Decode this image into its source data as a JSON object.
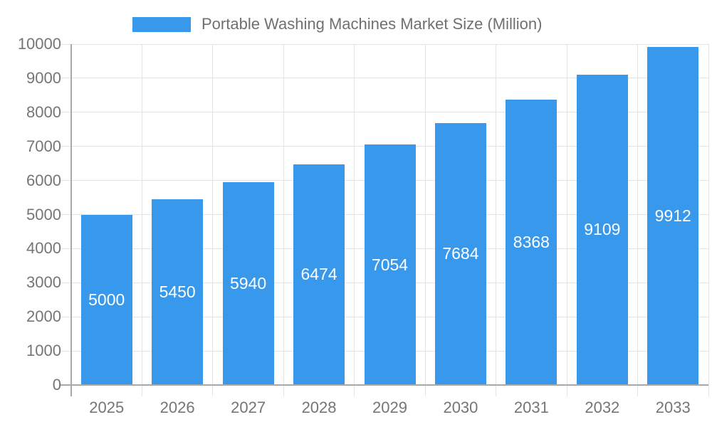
{
  "chart_data": {
    "type": "bar",
    "title": "Portable Washing Machines Market Size (Million)",
    "legend": {
      "label": "Portable Washing Machines Market Size (Million)",
      "position": "top"
    },
    "categories": [
      "2025",
      "2026",
      "2027",
      "2028",
      "2029",
      "2030",
      "2031",
      "2032",
      "2033"
    ],
    "values": [
      5000,
      5450,
      5940,
      6474,
      7054,
      7684,
      8368,
      9109,
      9912
    ],
    "xlabel": "",
    "ylabel": "",
    "ylim": [
      0,
      10000
    ],
    "yticks": [
      0,
      1000,
      2000,
      3000,
      4000,
      5000,
      6000,
      7000,
      8000,
      9000,
      10000
    ],
    "grid": true,
    "colors": {
      "bar": "#3898ec",
      "grid": "#e3e3e3",
      "axis": "#a8a8a8",
      "tick_text": "#757575",
      "legend_text": "#707070",
      "bar_label": "#ffffff",
      "background": "#ffffff"
    }
  }
}
